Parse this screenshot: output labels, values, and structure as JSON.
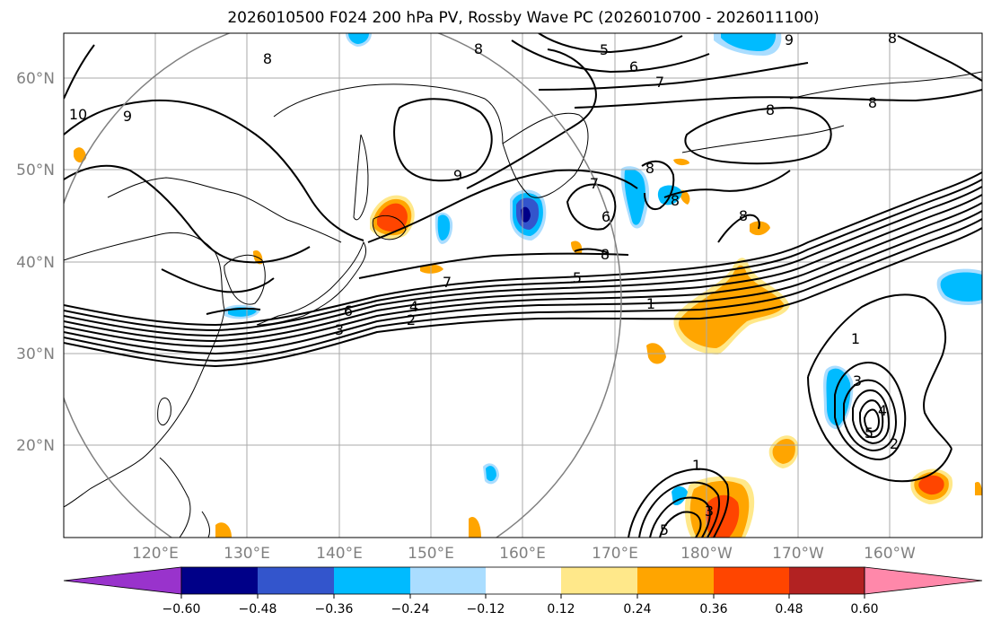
{
  "title": "2026010500 F024 200 hPa PV, Rossby Wave PC (2026010700 - 2026011100)",
  "lat_labels": [
    "60°N",
    "50°N",
    "40°N",
    "30°N",
    "20°N"
  ],
  "lon_labels": [
    "120°E",
    "130°E",
    "140°E",
    "150°E",
    "160°E",
    "170°E",
    "180°W",
    "170°W",
    "160°W"
  ],
  "colorbar": {
    "colors": [
      "#9933cc",
      "#000088",
      "#3355cc",
      "#00bbff",
      "#aaddff",
      "#ffffff",
      "#ffe88a",
      "#ffa500",
      "#ff4500",
      "#b22222",
      "#ff88aa"
    ],
    "labels": [
      "−0.60",
      "−0.48",
      "−0.36",
      "−0.24",
      "−0.12",
      "0.12",
      "0.24",
      "0.36",
      "0.48",
      "0.60"
    ]
  },
  "contour_labels": {
    "c1": "5",
    "c2": "6",
    "c3": "7",
    "c4": "8",
    "c5": "8",
    "c6": "9",
    "c7": "10",
    "c8": "9",
    "c9": "8",
    "c10": "7",
    "c11": "6",
    "c12": "8",
    "c13": "8",
    "c14": "8",
    "c15": "5",
    "c16": "7",
    "c17": "1",
    "c18": "2",
    "c19": "3",
    "c20": "4",
    "c21": "6",
    "c22": "1",
    "c23": "3",
    "c24": "4",
    "c25": "5",
    "c26": "2",
    "c27": "1",
    "c28": "3",
    "c29": "5",
    "c30": "9",
    "c31": "8",
    "c32": "8",
    "c33": "8"
  },
  "colors": {
    "gridline": "#aaaaaa",
    "contour": "#000000",
    "circle": "#808080"
  }
}
